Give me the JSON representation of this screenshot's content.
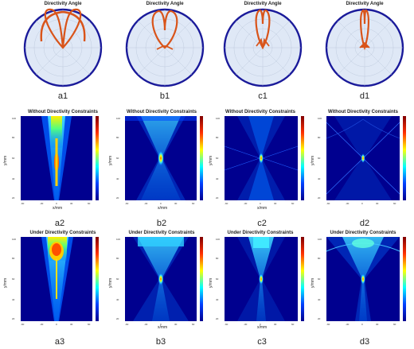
{
  "polar_title": "Directivity Angle",
  "row2_title": "Without  Directivity Constraints",
  "row3_title": "Under Directivity Constraints",
  "ylabel": "y/mm",
  "xlabel": "x/mm",
  "labels": {
    "a1": "a1",
    "b1": "b1",
    "c1": "c1",
    "d1": "d1",
    "a2": "a2",
    "b2": "b2",
    "c2": "c2",
    "d2": "d2",
    "a3": "a3",
    "b3": "b3",
    "c3": "c3",
    "d3": "d3"
  },
  "colors": {
    "circle": "#1a1a9a",
    "lobe": "#d9541a",
    "fill": "#dfe8f6"
  }
}
